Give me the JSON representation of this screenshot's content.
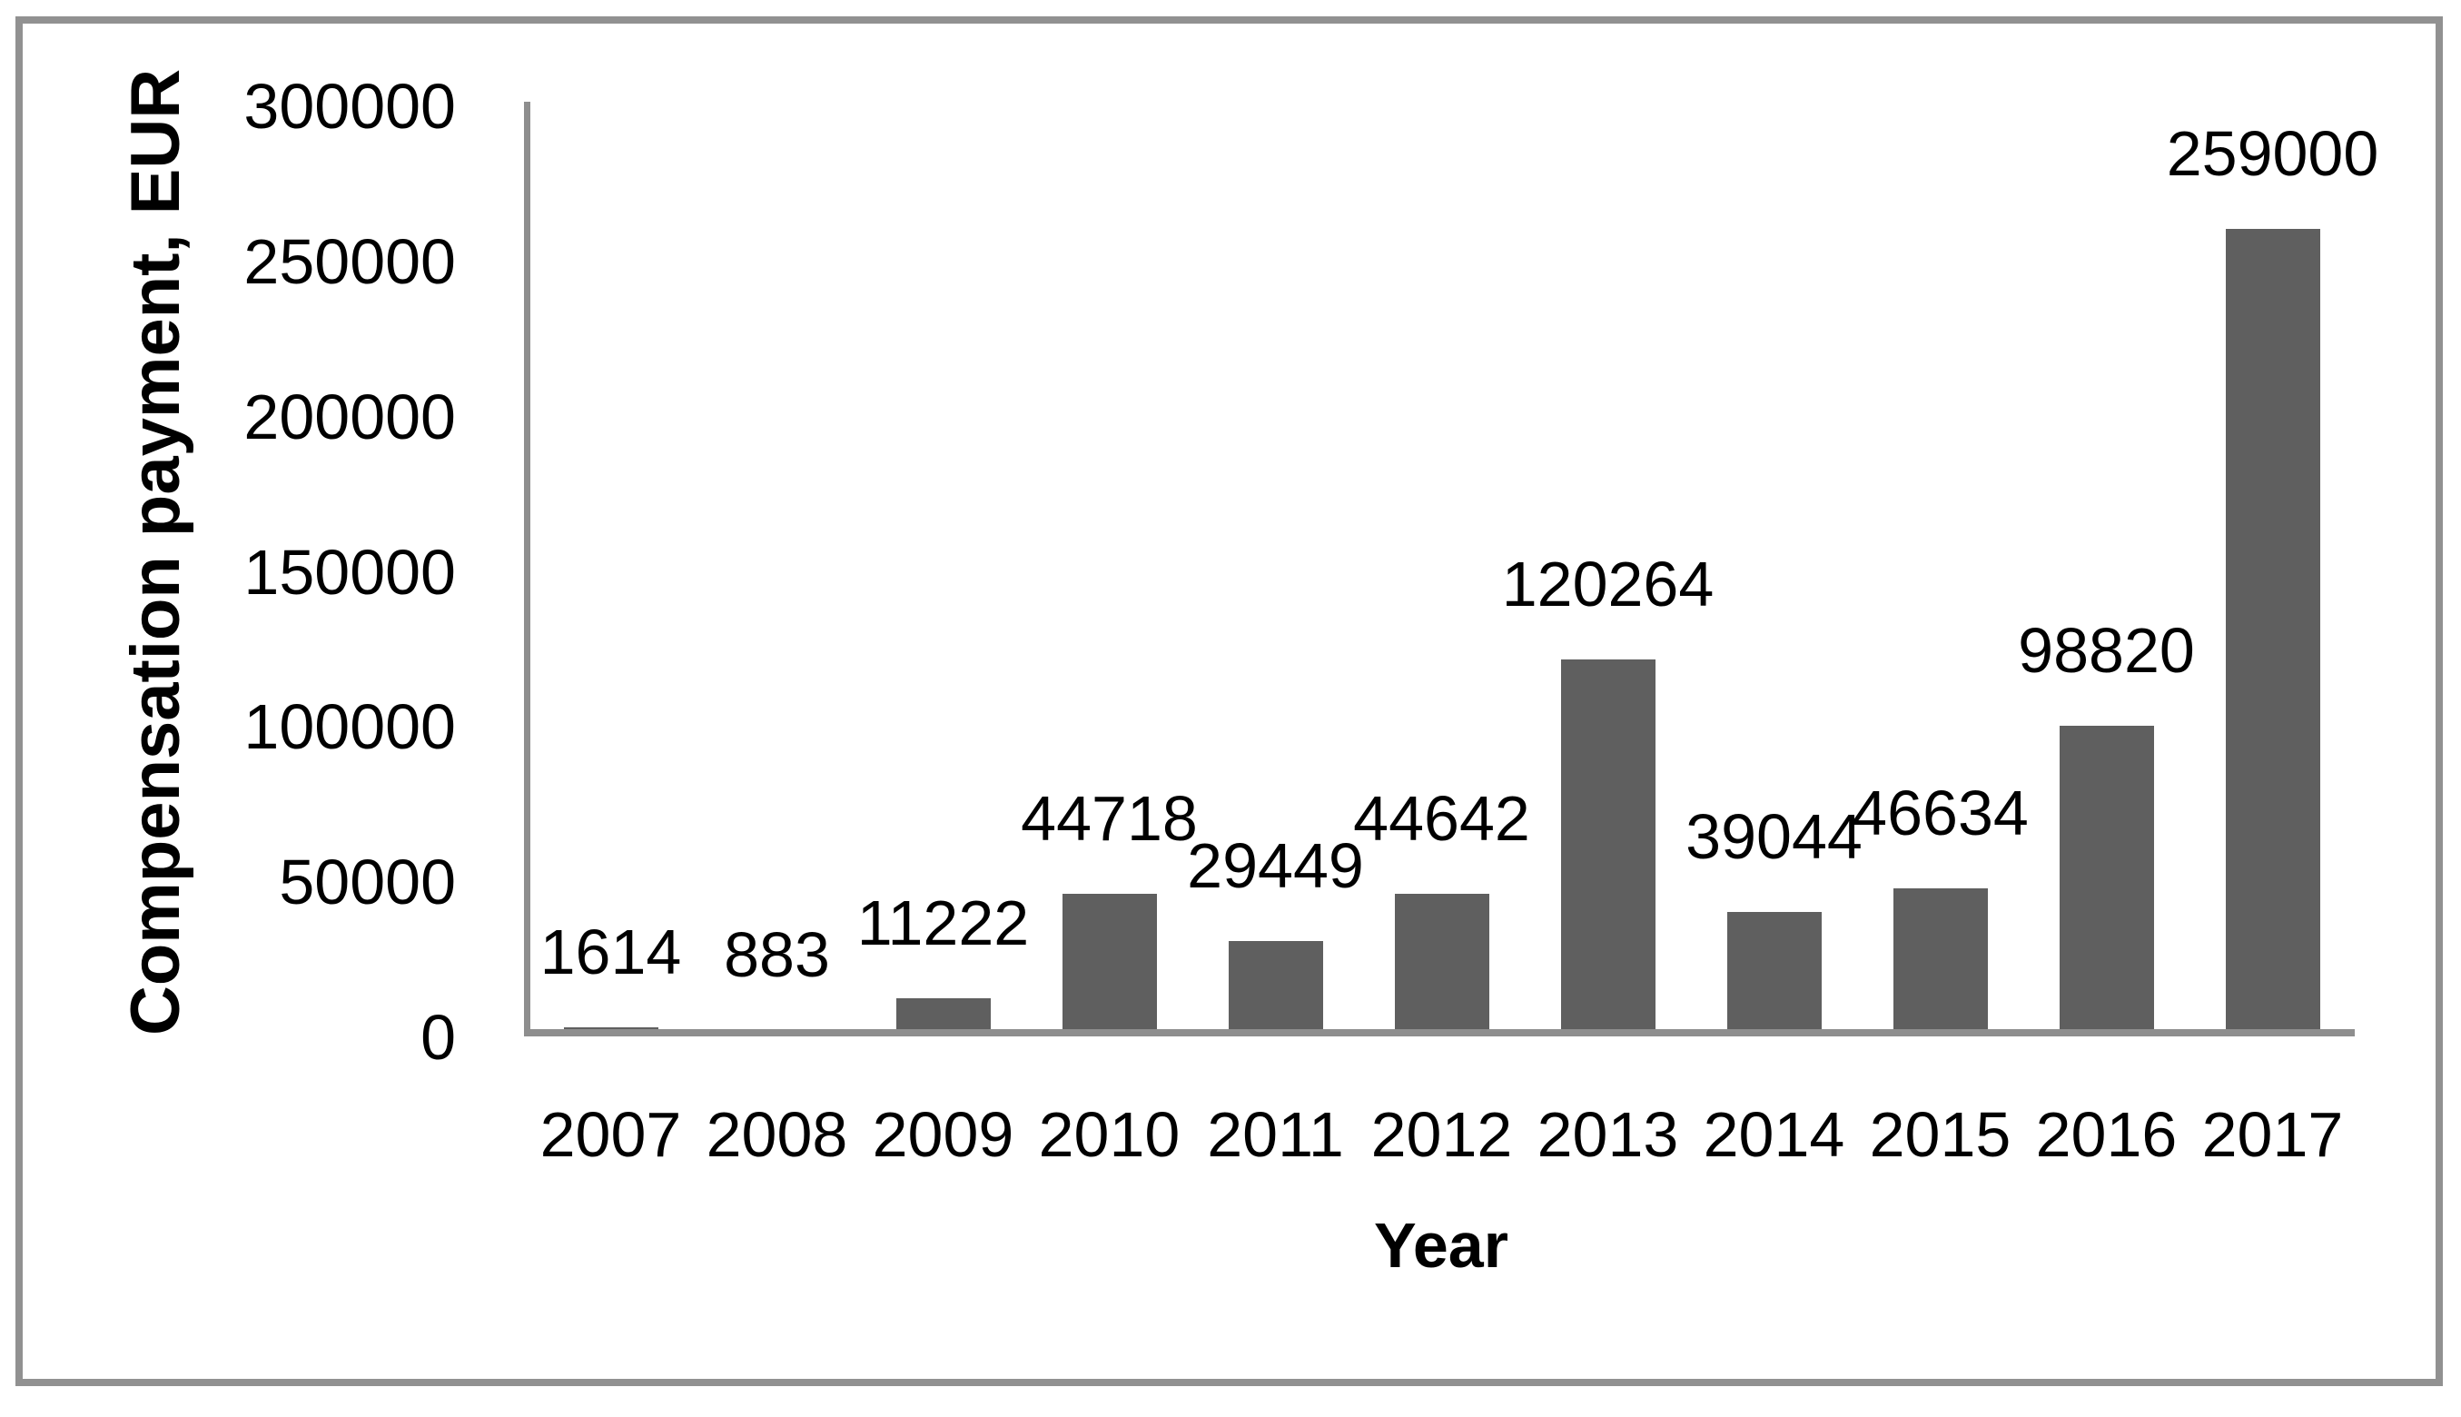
{
  "chart_data": {
    "type": "bar",
    "title": "",
    "categories": [
      "2007",
      "2008",
      "2009",
      "2010",
      "2011",
      "2012",
      "2013",
      "2014",
      "2015",
      "2016",
      "2017"
    ],
    "values": [
      1614,
      883,
      11222,
      44718,
      29449,
      44642,
      120264,
      39044,
      46634,
      98820,
      259000
    ],
    "data_labels": [
      "1614",
      "883",
      "11222",
      "44718",
      "29449",
      "44642",
      "120264",
      "39044",
      "46634",
      "98820",
      "259000"
    ],
    "xlabel": "Year",
    "ylabel": "Compensation payment, EUR",
    "ylim": [
      0,
      300000
    ],
    "y_ticks": [
      0,
      50000,
      100000,
      150000,
      200000,
      250000,
      300000
    ],
    "y_tick_labels": [
      "0",
      "50000",
      "100000",
      "150000",
      "200000",
      "250000",
      "300000"
    ],
    "grid": "off",
    "legend": "none",
    "colors": {
      "bar": "#5f5f5f",
      "axis": "#8e8e8e",
      "frame": "#919191",
      "text": "#000000",
      "background": "#ffffff"
    }
  }
}
